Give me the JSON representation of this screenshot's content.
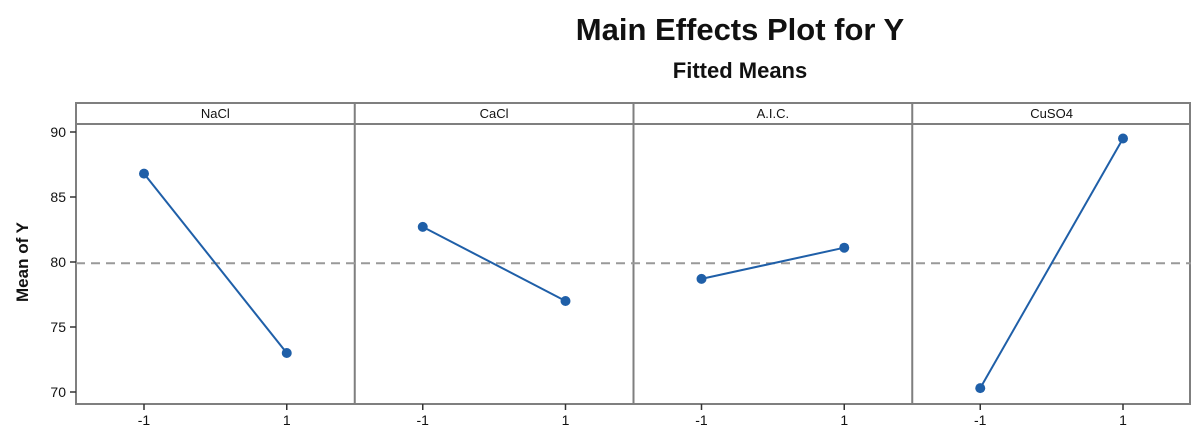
{
  "chart_data": {
    "type": "line",
    "title": "Main Effects Plot for Y",
    "subtitle": "Fitted Means",
    "ylabel": "Mean of Y",
    "xlabel": "",
    "ylim": [
      68.5,
      92
    ],
    "yticks": [
      70,
      75,
      80,
      85,
      90
    ],
    "reference_line": 79.9,
    "grid": false,
    "panels": [
      {
        "name": "NaCl",
        "x": [
          "-1",
          "1"
        ],
        "values": [
          86.8,
          73.0
        ]
      },
      {
        "name": "CaCl",
        "x": [
          "-1",
          "1"
        ],
        "values": [
          82.7,
          77.0
        ]
      },
      {
        "name": "A.I.C.",
        "x": [
          "-1",
          "1"
        ],
        "values": [
          78.7,
          81.1
        ]
      },
      {
        "name": "CuSO4",
        "x": [
          "-1",
          "1"
        ],
        "values": [
          70.3,
          89.5
        ]
      }
    ]
  },
  "colors": {
    "series": "#1f5fa8",
    "reference": "#999999",
    "frame": "#7f7f7f"
  }
}
